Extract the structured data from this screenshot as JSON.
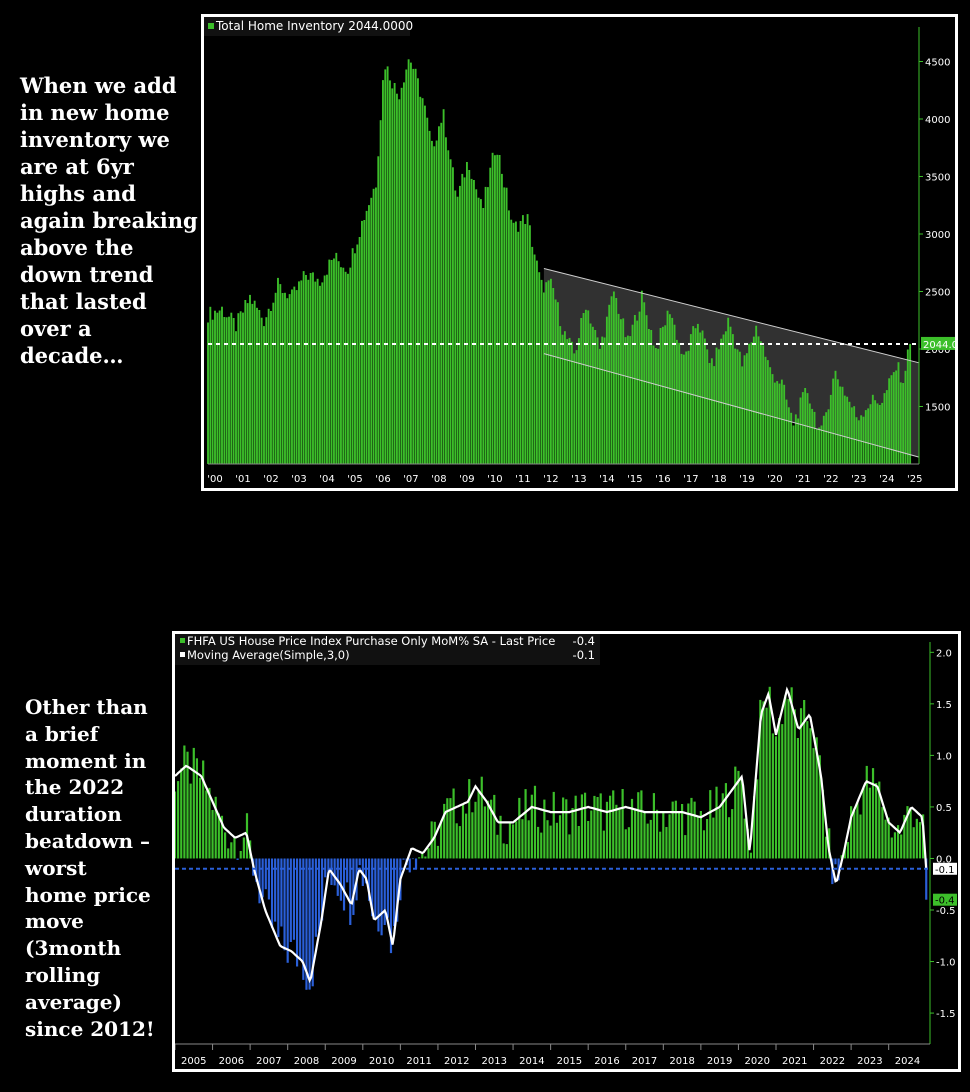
{
  "captions": {
    "top": "When we add in new home inventory we are at 6yr highs and again breaking above the down trend that lasted over a decade…",
    "bottom": "Other than a brief moment in the 2022 duration beatdown – worst home price move (3month rolling average) since 2012!"
  },
  "colors": {
    "green": "#3cbf2a",
    "blue": "#2a5fd8",
    "white": "#ffffff",
    "channel_fill": "#3a3a3a"
  },
  "chart_data": [
    {
      "type": "bar",
      "legend": "Total Home Inventory 2044.0000",
      "last_value_label": "2044.0",
      "last_value": 2044,
      "x_tick_labels": [
        "'00",
        "'01",
        "'02",
        "'03",
        "'04",
        "'05",
        "'06",
        "'07",
        "'08",
        "'09",
        "'10",
        "'11",
        "'12",
        "'13",
        "'14",
        "'15",
        "'16",
        "'17",
        "'18",
        "'19",
        "'20",
        "'21",
        "'22",
        "'23",
        "'24",
        "'25"
      ],
      "y_tick_labels": [
        "1500",
        "2000",
        "2500",
        "3000",
        "3500",
        "4000",
        "4500"
      ],
      "ylim": [
        1000,
        4800
      ],
      "year_anchors": [
        [
          2000.0,
          2300
        ],
        [
          2000.5,
          2350
        ],
        [
          2001.0,
          2200
        ],
        [
          2001.5,
          2450
        ],
        [
          2002.0,
          2250
        ],
        [
          2002.5,
          2550
        ],
        [
          2003.0,
          2450
        ],
        [
          2003.5,
          2650
        ],
        [
          2004.0,
          2600
        ],
        [
          2004.5,
          2800
        ],
        [
          2005.0,
          2700
        ],
        [
          2005.5,
          3100
        ],
        [
          2006.0,
          3450
        ],
        [
          2006.3,
          4500
        ],
        [
          2006.8,
          4200
        ],
        [
          2007.2,
          4550
        ],
        [
          2007.7,
          4150
        ],
        [
          2008.0,
          3750
        ],
        [
          2008.4,
          4050
        ],
        [
          2008.9,
          3300
        ],
        [
          2009.3,
          3650
        ],
        [
          2009.8,
          3200
        ],
        [
          2010.3,
          3800
        ],
        [
          2010.9,
          3050
        ],
        [
          2011.4,
          3150
        ],
        [
          2011.9,
          2550
        ],
        [
          2012.3,
          2550
        ],
        [
          2012.7,
          2150
        ],
        [
          2013.1,
          1950
        ],
        [
          2013.5,
          2400
        ],
        [
          2014.0,
          2000
        ],
        [
          2014.5,
          2500
        ],
        [
          2015.0,
          2050
        ],
        [
          2015.5,
          2450
        ],
        [
          2016.0,
          2000
        ],
        [
          2016.5,
          2350
        ],
        [
          2017.0,
          1900
        ],
        [
          2017.5,
          2250
        ],
        [
          2018.0,
          1850
        ],
        [
          2018.6,
          2250
        ],
        [
          2019.1,
          1850
        ],
        [
          2019.6,
          2200
        ],
        [
          2020.1,
          1800
        ],
        [
          2020.5,
          1700
        ],
        [
          2020.9,
          1350
        ],
        [
          2021.4,
          1650
        ],
        [
          2021.9,
          1250
        ],
        [
          2022.4,
          1800
        ],
        [
          2022.9,
          1550
        ],
        [
          2023.2,
          1400
        ],
        [
          2023.7,
          1550
        ],
        [
          2024.1,
          1550
        ],
        [
          2024.6,
          1850
        ],
        [
          2024.9,
          1700
        ],
        [
          2025.0,
          2044
        ]
      ],
      "channel": {
        "top_line": [
          [
            2012.0,
            2700
          ],
          [
            2025.4,
            1880
          ]
        ],
        "bottom_line": [
          [
            2012.0,
            1960
          ],
          [
            2025.4,
            1060
          ]
        ]
      },
      "reference_line": 2044
    },
    {
      "type": "bar",
      "legend": [
        {
          "name": "FHFA US House Price Index Purchase Only MoM% SA - Last Price",
          "value": "-0.4"
        },
        {
          "name": "Moving Average(Simple,3,0)",
          "value": "-0.1"
        }
      ],
      "last_value_labels": [
        "-0.1",
        "-0.4"
      ],
      "x_tick_labels": [
        "2005",
        "2006",
        "2007",
        "2008",
        "2009",
        "2010",
        "2011",
        "2012",
        "2013",
        "2014",
        "2015",
        "2016",
        "2017",
        "2018",
        "2019",
        "2020",
        "2021",
        "2022",
        "2023",
        "2024"
      ],
      "y_tick_labels": [
        "2.0",
        "1.5",
        "1.0",
        "0.5",
        "0.0",
        "-0.5",
        "-1.0",
        "-1.5"
      ],
      "ylim": [
        -1.8,
        2.1
      ],
      "reference_line": -0.1,
      "ma_anchors": [
        [
          2005.0,
          0.8
        ],
        [
          2005.3,
          0.9
        ],
        [
          2005.7,
          0.8
        ],
        [
          2006.0,
          0.55
        ],
        [
          2006.3,
          0.3
        ],
        [
          2006.6,
          0.2
        ],
        [
          2006.9,
          0.25
        ],
        [
          2007.1,
          -0.1
        ],
        [
          2007.4,
          -0.5
        ],
        [
          2007.8,
          -0.85
        ],
        [
          2008.1,
          -0.9
        ],
        [
          2008.4,
          -1.0
        ],
        [
          2008.6,
          -1.2
        ],
        [
          2008.9,
          -0.6
        ],
        [
          2009.1,
          -0.1
        ],
        [
          2009.4,
          -0.25
        ],
        [
          2009.7,
          -0.45
        ],
        [
          2009.9,
          -0.1
        ],
        [
          2010.1,
          -0.2
        ],
        [
          2010.3,
          -0.6
        ],
        [
          2010.6,
          -0.5
        ],
        [
          2010.8,
          -0.85
        ],
        [
          2011.0,
          -0.2
        ],
        [
          2011.3,
          0.1
        ],
        [
          2011.6,
          0.05
        ],
        [
          2011.9,
          0.2
        ],
        [
          2012.2,
          0.45
        ],
        [
          2012.5,
          0.5
        ],
        [
          2012.8,
          0.55
        ],
        [
          2013.0,
          0.7
        ],
        [
          2013.3,
          0.55
        ],
        [
          2013.6,
          0.35
        ],
        [
          2014.0,
          0.35
        ],
        [
          2014.5,
          0.5
        ],
        [
          2015.0,
          0.45
        ],
        [
          2015.5,
          0.45
        ],
        [
          2016.0,
          0.5
        ],
        [
          2016.5,
          0.45
        ],
        [
          2017.0,
          0.5
        ],
        [
          2017.5,
          0.45
        ],
        [
          2018.0,
          0.45
        ],
        [
          2018.5,
          0.45
        ],
        [
          2019.0,
          0.4
        ],
        [
          2019.5,
          0.5
        ],
        [
          2019.9,
          0.7
        ],
        [
          2020.1,
          0.8
        ],
        [
          2020.3,
          0.05
        ],
        [
          2020.6,
          1.4
        ],
        [
          2020.8,
          1.6
        ],
        [
          2021.0,
          1.2
        ],
        [
          2021.3,
          1.65
        ],
        [
          2021.6,
          1.25
        ],
        [
          2021.9,
          1.4
        ],
        [
          2022.2,
          0.8
        ],
        [
          2022.4,
          0.1
        ],
        [
          2022.6,
          -0.25
        ],
        [
          2022.8,
          0.05
        ],
        [
          2023.0,
          0.4
        ],
        [
          2023.4,
          0.75
        ],
        [
          2023.7,
          0.7
        ],
        [
          2024.0,
          0.35
        ],
        [
          2024.3,
          0.25
        ],
        [
          2024.6,
          0.5
        ],
        [
          2024.9,
          0.4
        ],
        [
          2025.0,
          -0.1
        ]
      ]
    }
  ]
}
